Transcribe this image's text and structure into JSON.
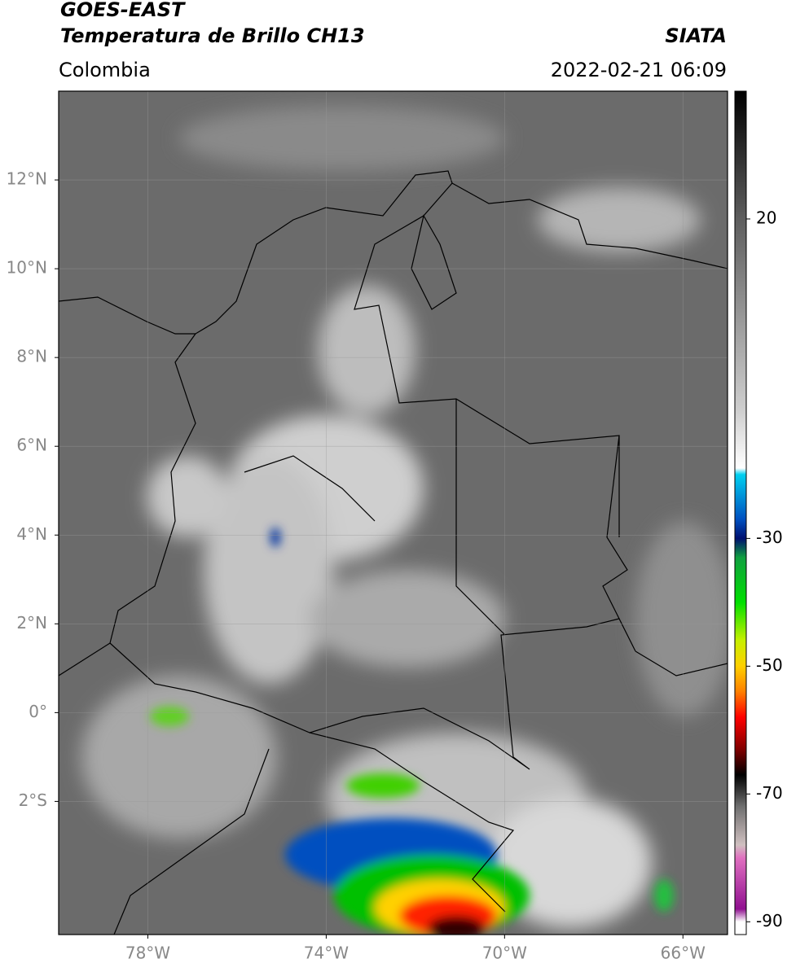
{
  "chart_data": {
    "type": "map",
    "title": "GOES-EAST",
    "subtitle": "Temperatura de Brillo CH13",
    "source": "SIATA",
    "region": "Colombia",
    "datetime": "2022-02-21 06:09",
    "xlim": [
      -80,
      -65
    ],
    "ylim": [
      -5,
      14
    ],
    "xticks": [
      {
        "value": -78,
        "label": "78°W"
      },
      {
        "value": -74,
        "label": "74°W"
      },
      {
        "value": -70,
        "label": "70°W"
      },
      {
        "value": -66,
        "label": "66°W"
      }
    ],
    "yticks": [
      {
        "value": 12,
        "label": "12°N"
      },
      {
        "value": 10,
        "label": "10°N"
      },
      {
        "value": 8,
        "label": "8°N"
      },
      {
        "value": 6,
        "label": "6°N"
      },
      {
        "value": 4,
        "label": "4°N"
      },
      {
        "value": 2,
        "label": "2°N"
      },
      {
        "value": 0,
        "label": "0°"
      },
      {
        "value": -2,
        "label": "2°S"
      }
    ],
    "grid": true,
    "colorbar": {
      "clim": [
        -92,
        40
      ],
      "ticks": [
        20,
        -30,
        -50,
        -70,
        -90
      ],
      "colors": [
        {
          "value": 40,
          "color": "#000000"
        },
        {
          "value": 20,
          "color": "#5e5e5e"
        },
        {
          "value": -10,
          "color": "#cfcfcf"
        },
        {
          "value": -19,
          "color": "#ffffff"
        },
        {
          "value": -20,
          "color": "#00d0f0"
        },
        {
          "value": -27,
          "color": "#0050c0"
        },
        {
          "value": -30,
          "color": "#001070"
        },
        {
          "value": -33,
          "color": "#10a040"
        },
        {
          "value": -40,
          "color": "#00e000"
        },
        {
          "value": -46,
          "color": "#c8f000"
        },
        {
          "value": -50,
          "color": "#ffd000"
        },
        {
          "value": -54,
          "color": "#ff8000"
        },
        {
          "value": -58,
          "color": "#ff0000"
        },
        {
          "value": -63,
          "color": "#800000"
        },
        {
          "value": -67,
          "color": "#000000"
        },
        {
          "value": -72,
          "color": "#707070"
        },
        {
          "value": -78,
          "color": "#d0c0c0"
        },
        {
          "value": -80,
          "color": "#e070c0"
        },
        {
          "value": -88,
          "color": "#901090"
        },
        {
          "value": -90,
          "color": "#ffffff"
        },
        {
          "value": -92,
          "color": "#ffffff"
        }
      ]
    }
  }
}
